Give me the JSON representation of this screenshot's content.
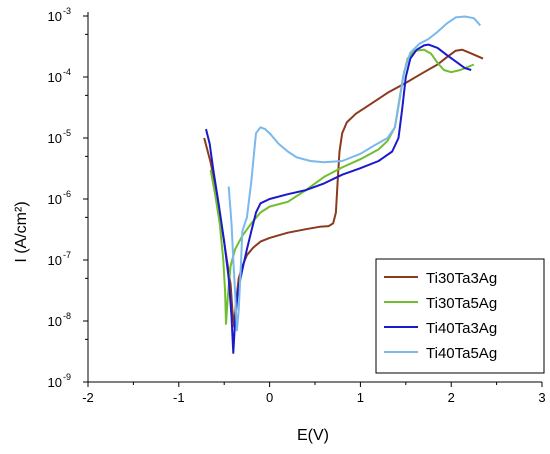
{
  "chart_data": {
    "type": "line",
    "xlabel": "E(V)",
    "ylabel": "I (A/cm²)",
    "xlim": [
      -2,
      3
    ],
    "ylim": [
      1e-09,
      0.001
    ],
    "yscale": "log",
    "grid": false,
    "legend_position": "bottom-right",
    "x_ticks": [
      {
        "value": -2,
        "label": "-2"
      },
      {
        "value": -1,
        "label": "-1"
      },
      {
        "value": 0,
        "label": "0"
      },
      {
        "value": 1,
        "label": "1"
      },
      {
        "value": 2,
        "label": "2"
      },
      {
        "value": 3,
        "label": "3"
      }
    ],
    "y_ticks": [
      {
        "value": 1e-09,
        "base": "10",
        "exp": "-9"
      },
      {
        "value": 1e-08,
        "base": "10",
        "exp": "-8"
      },
      {
        "value": 1e-07,
        "base": "10",
        "exp": "-7"
      },
      {
        "value": 1e-06,
        "base": "10",
        "exp": "-6"
      },
      {
        "value": 1e-05,
        "base": "10",
        "exp": "-5"
      },
      {
        "value": 0.0001,
        "base": "10",
        "exp": "-4"
      },
      {
        "value": 0.001,
        "base": "10",
        "exp": "-3"
      }
    ],
    "series": [
      {
        "name": "Ti30Ta3Ag",
        "color": "#8b3a1e",
        "points": [
          [
            -0.72,
            1e-05
          ],
          [
            -0.65,
            4e-06
          ],
          [
            -0.58,
            1.2e-06
          ],
          [
            -0.52,
            3e-07
          ],
          [
            -0.47,
            1e-07
          ],
          [
            -0.43,
            4e-08
          ],
          [
            -0.41,
            1.5e-08
          ],
          [
            -0.39,
            8e-09
          ],
          [
            -0.37,
            2e-08
          ],
          [
            -0.34,
            5e-08
          ],
          [
            -0.3,
            8e-08
          ],
          [
            -0.25,
            1.2e-07
          ],
          [
            -0.18,
            1.6e-07
          ],
          [
            -0.1,
            2e-07
          ],
          [
            0.0,
            2.3e-07
          ],
          [
            0.2,
            2.8e-07
          ],
          [
            0.4,
            3.2e-07
          ],
          [
            0.55,
            3.5e-07
          ],
          [
            0.65,
            3.6e-07
          ],
          [
            0.7,
            4e-07
          ],
          [
            0.73,
            6e-07
          ],
          [
            0.75,
            2e-06
          ],
          [
            0.77,
            6e-06
          ],
          [
            0.8,
            1.2e-05
          ],
          [
            0.85,
            1.8e-05
          ],
          [
            0.95,
            2.5e-05
          ],
          [
            1.1,
            3.5e-05
          ],
          [
            1.3,
            5.5e-05
          ],
          [
            1.5,
            8e-05
          ],
          [
            1.7,
            0.00012
          ],
          [
            1.85,
            0.00016
          ],
          [
            1.95,
            0.00021
          ],
          [
            2.05,
            0.00027
          ],
          [
            2.12,
            0.00028
          ],
          [
            2.2,
            0.00025
          ],
          [
            2.35,
            0.0002
          ]
        ]
      },
      {
        "name": "Ti30Ta5Ag",
        "color": "#6fbe2e",
        "points": [
          [
            -0.65,
            3e-06
          ],
          [
            -0.6,
            1.2e-06
          ],
          [
            -0.55,
            4e-07
          ],
          [
            -0.51,
            1e-07
          ],
          [
            -0.49,
            3e-08
          ],
          [
            -0.48,
            9e-09
          ],
          [
            -0.46,
            2.5e-08
          ],
          [
            -0.43,
            8e-08
          ],
          [
            -0.38,
            1.5e-07
          ],
          [
            -0.3,
            2.5e-07
          ],
          [
            -0.2,
            4e-07
          ],
          [
            -0.1,
            6e-07
          ],
          [
            0.0,
            7.5e-07
          ],
          [
            0.2,
            9e-07
          ],
          [
            0.4,
            1.4e-06
          ],
          [
            0.6,
            2.3e-06
          ],
          [
            0.8,
            3.3e-06
          ],
          [
            1.0,
            4.5e-06
          ],
          [
            1.2,
            6.5e-06
          ],
          [
            1.3,
            9e-06
          ],
          [
            1.38,
            1.5e-05
          ],
          [
            1.42,
            3.5e-05
          ],
          [
            1.47,
            0.0001
          ],
          [
            1.52,
            0.0002
          ],
          [
            1.6,
            0.00027
          ],
          [
            1.7,
            0.00028
          ],
          [
            1.78,
            0.00024
          ],
          [
            1.85,
            0.00017
          ],
          [
            1.92,
            0.00013
          ],
          [
            2.0,
            0.00012
          ],
          [
            2.1,
            0.00013
          ],
          [
            2.25,
            0.00016
          ]
        ]
      },
      {
        "name": "Ti40Ta3Ag",
        "color": "#1a1acc",
        "points": [
          [
            -0.7,
            1.4e-05
          ],
          [
            -0.66,
            8e-06
          ],
          [
            -0.62,
            3e-06
          ],
          [
            -0.56,
            8e-07
          ],
          [
            -0.5,
            2e-07
          ],
          [
            -0.45,
            5e-08
          ],
          [
            -0.42,
            1.2e-08
          ],
          [
            -0.4,
            3e-09
          ],
          [
            -0.38,
            1e-08
          ],
          [
            -0.35,
            3e-08
          ],
          [
            -0.3,
            7e-08
          ],
          [
            -0.25,
            1.5e-07
          ],
          [
            -0.2,
            3e-07
          ],
          [
            -0.15,
            6e-07
          ],
          [
            -0.1,
            8.5e-07
          ],
          [
            0.0,
            1e-06
          ],
          [
            0.2,
            1.2e-06
          ],
          [
            0.4,
            1.4e-06
          ],
          [
            0.6,
            1.8e-06
          ],
          [
            0.8,
            2.5e-06
          ],
          [
            1.0,
            3.2e-06
          ],
          [
            1.2,
            4.2e-06
          ],
          [
            1.35,
            6e-06
          ],
          [
            1.42,
            1e-05
          ],
          [
            1.46,
            3e-05
          ],
          [
            1.5,
            0.0001
          ],
          [
            1.55,
            0.0002
          ],
          [
            1.62,
            0.00028
          ],
          [
            1.7,
            0.00033
          ],
          [
            1.75,
            0.00034
          ],
          [
            1.85,
            0.0003
          ],
          [
            1.95,
            0.00023
          ],
          [
            2.05,
            0.00018
          ],
          [
            2.15,
            0.00014
          ],
          [
            2.22,
            0.00013
          ]
        ]
      },
      {
        "name": "Ti40Ta5Ag",
        "color": "#7ab8ee",
        "points": [
          [
            -0.45,
            1.6e-06
          ],
          [
            -0.42,
            4e-07
          ],
          [
            -0.4,
            1e-07
          ],
          [
            -0.38,
            3e-08
          ],
          [
            -0.36,
            7e-09
          ],
          [
            -0.34,
            1.5e-08
          ],
          [
            -0.32,
            6e-08
          ],
          [
            -0.3,
            3e-07
          ],
          [
            -0.25,
            5e-07
          ],
          [
            -0.2,
            2e-06
          ],
          [
            -0.17,
            6e-06
          ],
          [
            -0.15,
            1.2e-05
          ],
          [
            -0.1,
            1.5e-05
          ],
          [
            -0.05,
            1.4e-05
          ],
          [
            0.0,
            1.2e-05
          ],
          [
            0.1,
            8e-06
          ],
          [
            0.2,
            6e-06
          ],
          [
            0.3,
            4.8e-06
          ],
          [
            0.45,
            4.2e-06
          ],
          [
            0.6,
            4e-06
          ],
          [
            0.8,
            4.2e-06
          ],
          [
            1.0,
            5.5e-06
          ],
          [
            1.15,
            7.5e-06
          ],
          [
            1.3,
            1e-05
          ],
          [
            1.38,
            1.5e-05
          ],
          [
            1.43,
            4e-05
          ],
          [
            1.48,
            0.00012
          ],
          [
            1.55,
            0.00025
          ],
          [
            1.65,
            0.00035
          ],
          [
            1.75,
            0.00042
          ],
          [
            1.85,
            0.00055
          ],
          [
            1.95,
            0.00075
          ],
          [
            2.05,
            0.00095
          ],
          [
            2.15,
            0.00098
          ],
          [
            2.25,
            0.00092
          ],
          [
            2.32,
            0.0007
          ]
        ]
      }
    ]
  }
}
